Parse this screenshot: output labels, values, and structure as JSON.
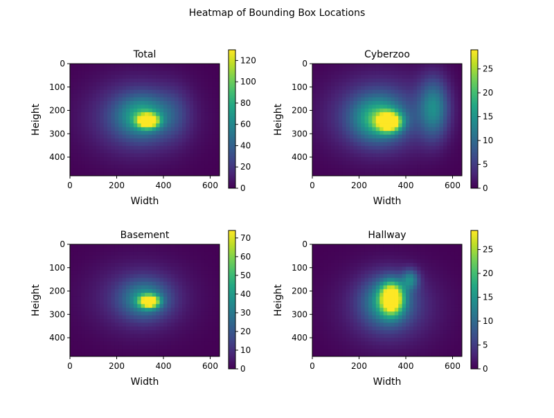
{
  "figure": {
    "title": "Heatmap of Bounding Box Locations"
  },
  "chart_data": [
    {
      "type": "heatmap",
      "title": "Total",
      "xlabel": "Width",
      "ylabel": "Height",
      "xlim": [
        0,
        640
      ],
      "ylim": [
        480,
        0
      ],
      "xticks": [
        "0",
        "200",
        "400",
        "600"
      ],
      "xtick_values": [
        0,
        200,
        400,
        600
      ],
      "yticks": [
        "0",
        "100",
        "200",
        "300",
        "400"
      ],
      "ytick_values": [
        0,
        100,
        200,
        300,
        400
      ],
      "colorbar": {
        "min": 0,
        "max": 130,
        "ticks": [
          "0",
          "20",
          "40",
          "60",
          "80",
          "100",
          "120"
        ],
        "tick_values": [
          0,
          20,
          40,
          60,
          80,
          100,
          120
        ]
      },
      "colormap": "viridis",
      "blobs": [
        {
          "cx": 335,
          "cy": 245,
          "sx": 30,
          "sy": 20,
          "v": 125
        },
        {
          "cx": 310,
          "cy": 225,
          "sx": 75,
          "sy": 60,
          "v": 55
        },
        {
          "cx": 290,
          "cy": 230,
          "sx": 150,
          "sy": 115,
          "v": 30
        },
        {
          "cx": 450,
          "cy": 210,
          "sx": 50,
          "sy": 80,
          "v": 12
        }
      ]
    },
    {
      "type": "heatmap",
      "title": "Cyberzoo",
      "xlabel": "Width",
      "ylabel": "Height",
      "xlim": [
        0,
        640
      ],
      "ylim": [
        480,
        0
      ],
      "xticks": [
        "0",
        "200",
        "400",
        "600"
      ],
      "xtick_values": [
        0,
        200,
        400,
        600
      ],
      "yticks": [
        "0",
        "100",
        "200",
        "300",
        "400"
      ],
      "ytick_values": [
        0,
        100,
        200,
        300,
        400
      ],
      "colorbar": {
        "min": 0,
        "max": 29,
        "ticks": [
          "0",
          "5",
          "10",
          "15",
          "20",
          "25"
        ],
        "tick_values": [
          0,
          5,
          10,
          15,
          20,
          25
        ]
      },
      "colormap": "viridis",
      "blobs": [
        {
          "cx": 330,
          "cy": 250,
          "sx": 35,
          "sy": 28,
          "v": 27
        },
        {
          "cx": 280,
          "cy": 235,
          "sx": 75,
          "sy": 65,
          "v": 14
        },
        {
          "cx": 520,
          "cy": 190,
          "sx": 45,
          "sy": 90,
          "v": 12
        },
        {
          "cx": 290,
          "cy": 220,
          "sx": 160,
          "sy": 120,
          "v": 7
        }
      ]
    },
    {
      "type": "heatmap",
      "title": "Basement",
      "xlabel": "Width",
      "ylabel": "Height",
      "xlim": [
        0,
        640
      ],
      "ylim": [
        480,
        0
      ],
      "xticks": [
        "0",
        "200",
        "400",
        "600"
      ],
      "xtick_values": [
        0,
        200,
        400,
        600
      ],
      "yticks": [
        "0",
        "100",
        "200",
        "300",
        "400"
      ],
      "ytick_values": [
        0,
        100,
        200,
        300,
        400
      ],
      "colorbar": {
        "min": 0,
        "max": 74,
        "ticks": [
          "0",
          "10",
          "20",
          "30",
          "40",
          "50",
          "60",
          "70"
        ],
        "tick_values": [
          0,
          10,
          20,
          30,
          40,
          50,
          60,
          70
        ]
      },
      "colormap": "viridis",
      "blobs": [
        {
          "cx": 340,
          "cy": 245,
          "sx": 28,
          "sy": 18,
          "v": 70
        },
        {
          "cx": 320,
          "cy": 235,
          "sx": 70,
          "sy": 55,
          "v": 28
        },
        {
          "cx": 300,
          "cy": 230,
          "sx": 150,
          "sy": 110,
          "v": 12
        }
      ]
    },
    {
      "type": "heatmap",
      "title": "Hallway",
      "xlabel": "Width",
      "ylabel": "Height",
      "xlim": [
        0,
        640
      ],
      "ylim": [
        480,
        0
      ],
      "xticks": [
        "0",
        "200",
        "400",
        "600"
      ],
      "xtick_values": [
        0,
        200,
        400,
        600
      ],
      "yticks": [
        "0",
        "100",
        "200",
        "300",
        "400"
      ],
      "ytick_values": [
        0,
        100,
        200,
        300,
        400
      ],
      "colorbar": {
        "min": 0,
        "max": 29,
        "ticks": [
          "0",
          "5",
          "10",
          "15",
          "20",
          "25"
        ],
        "tick_values": [
          0,
          5,
          10,
          15,
          20,
          25
        ]
      },
      "colormap": "viridis",
      "blobs": [
        {
          "cx": 340,
          "cy": 230,
          "sx": 32,
          "sy": 45,
          "v": 25
        },
        {
          "cx": 320,
          "cy": 245,
          "sx": 70,
          "sy": 70,
          "v": 13
        },
        {
          "cx": 420,
          "cy": 150,
          "sx": 25,
          "sy": 30,
          "v": 10
        },
        {
          "cx": 330,
          "cy": 270,
          "sx": 150,
          "sy": 120,
          "v": 5
        }
      ]
    }
  ]
}
